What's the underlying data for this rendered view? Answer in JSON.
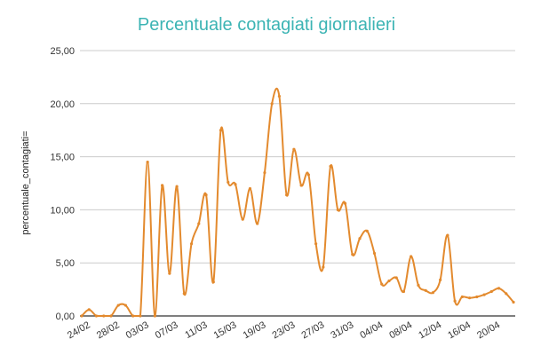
{
  "chart_data": {
    "type": "line",
    "title": "Percentuale contagiati giornalieri",
    "xlabel": "",
    "ylabel": "percentuale_contagiati=",
    "ylim": [
      0,
      25
    ],
    "yticks": [
      "0,00",
      "5,00",
      "10,00",
      "15,00",
      "20,00",
      "25,00"
    ],
    "ytick_values": [
      0,
      5,
      10,
      15,
      20,
      25
    ],
    "grid": true,
    "colors": {
      "line": "#e38a2e",
      "title": "#3cb4b4",
      "grid": "#cccccc",
      "axis": "#333333"
    },
    "x": [
      "23/02",
      "24/02",
      "25/02",
      "26/02",
      "27/02",
      "28/02",
      "29/02",
      "01/03",
      "02/03",
      "03/03",
      "04/03",
      "05/03",
      "06/03",
      "07/03",
      "08/03",
      "09/03",
      "10/03",
      "11/03",
      "12/03",
      "13/03",
      "14/03",
      "15/03",
      "16/03",
      "17/03",
      "18/03",
      "19/03",
      "20/03",
      "21/03",
      "22/03",
      "23/03",
      "24/03",
      "25/03",
      "26/03",
      "27/03",
      "28/03",
      "29/03",
      "30/03",
      "31/03",
      "01/04",
      "02/04",
      "03/04",
      "04/04",
      "05/04",
      "06/04",
      "07/04",
      "08/04",
      "09/04",
      "10/04",
      "11/04",
      "12/04",
      "13/04",
      "14/04",
      "15/04",
      "16/04",
      "17/04",
      "18/04",
      "19/04",
      "20/04",
      "21/04",
      "22/04"
    ],
    "xtick_labels": [
      "24/02",
      "28/02",
      "03/03",
      "07/03",
      "11/03",
      "15/03",
      "19/03",
      "23/03",
      "27/03",
      "31/03",
      "04/04",
      "08/04",
      "12/04",
      "16/04",
      "20/04"
    ],
    "series": [
      {
        "name": "percentuale_contagiati",
        "values": [
          0,
          0.6,
          0,
          0,
          0,
          1.0,
          1.0,
          0,
          0,
          14.5,
          0,
          12.3,
          4.0,
          12.2,
          2.1,
          6.8,
          8.7,
          11.4,
          3.2,
          17.5,
          12.6,
          12.4,
          9.1,
          12.0,
          8.7,
          13.5,
          20.0,
          20.7,
          11.4,
          15.7,
          12.3,
          13.3,
          6.8,
          4.6,
          14.1,
          10.0,
          10.6,
          5.8,
          7.3,
          8.0,
          5.9,
          3.0,
          3.3,
          3.6,
          2.3,
          5.6,
          2.9,
          2.4,
          2.2,
          3.4,
          7.6,
          1.4,
          1.8,
          1.7,
          1.8,
          2.0,
          2.3,
          2.6,
          2.1,
          1.3
        ]
      }
    ]
  }
}
